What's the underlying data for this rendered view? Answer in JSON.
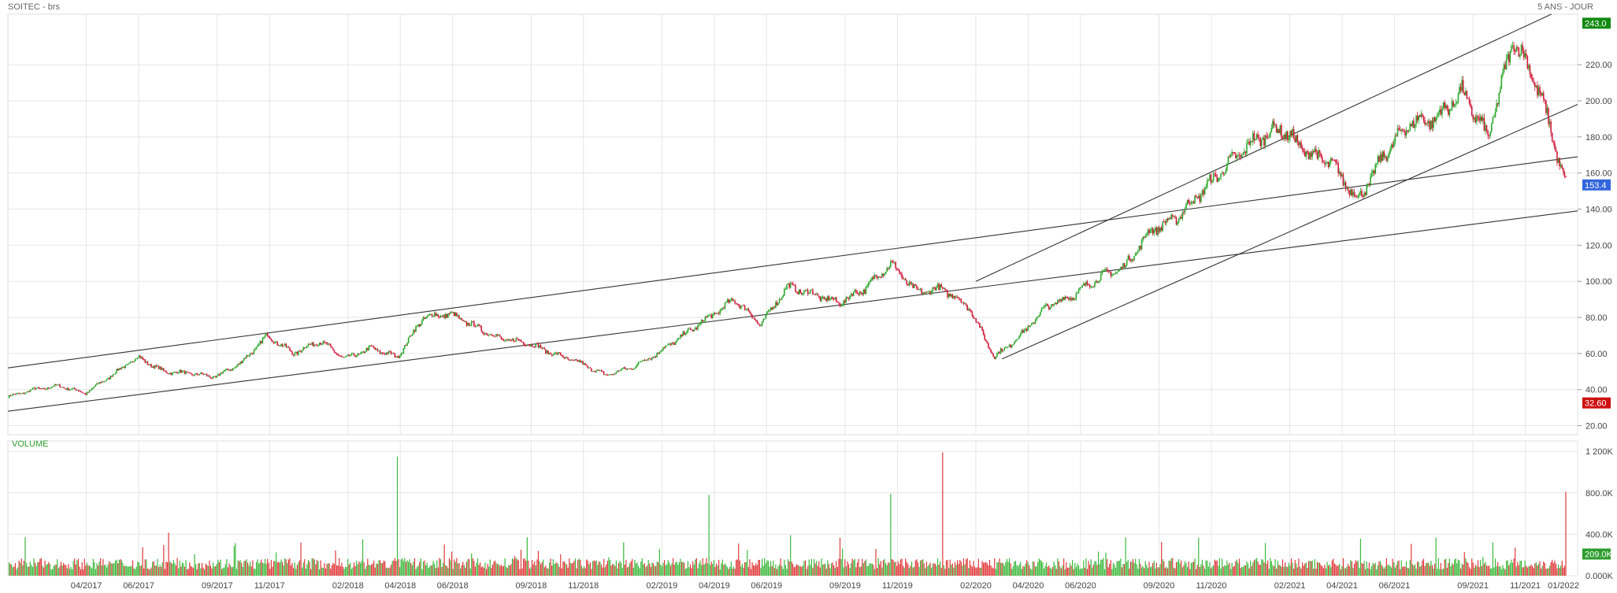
{
  "header": {
    "title": "SOITEC - brs",
    "period": "5 ANS - JOUR",
    "volume_label": "VOLUME"
  },
  "chart_data": [
    {
      "type": "candlestick",
      "title": "SOITEC - brs",
      "subtitle": "5 ANS - JOUR",
      "x_range": [
        "2017-01",
        "2022-01"
      ],
      "x_tick_labels": [
        "04/2017",
        "06/2017",
        "09/2017",
        "11/2017",
        "02/2018",
        "04/2018",
        "06/2018",
        "09/2018",
        "11/2018",
        "02/2019",
        "04/2019",
        "06/2019",
        "09/2019",
        "11/2019",
        "02/2020",
        "04/2020",
        "06/2020",
        "09/2020",
        "11/2020",
        "02/2021",
        "04/2021",
        "06/2021",
        "09/2021",
        "11/2021",
        "01/2022"
      ],
      "y_tick_labels": [
        "20.00",
        "40.00",
        "60.00",
        "80.00",
        "100.00",
        "120.00",
        "140.00",
        "160.00",
        "180.00",
        "200.00",
        "220.00"
      ],
      "ylim": [
        15,
        248
      ],
      "grid": true,
      "markers": [
        {
          "label": "243.0",
          "value": 243.0,
          "color": "#128a12"
        },
        {
          "label": "153.4",
          "value": 153.4,
          "color": "#3366dd"
        },
        {
          "label": "32.60",
          "value": 32.6,
          "color": "#cc1111"
        }
      ],
      "close_series": [
        {
          "date": "2017-01",
          "close": 36
        },
        {
          "date": "2017-02",
          "close": 40
        },
        {
          "date": "2017-03",
          "close": 42
        },
        {
          "date": "2017-04",
          "close": 38
        },
        {
          "date": "2017-05",
          "close": 48
        },
        {
          "date": "2017-06",
          "close": 58
        },
        {
          "date": "2017-07",
          "close": 50
        },
        {
          "date": "2017-08",
          "close": 49
        },
        {
          "date": "2017-09",
          "close": 47
        },
        {
          "date": "2017-10",
          "close": 55
        },
        {
          "date": "2017-11",
          "close": 70
        },
        {
          "date": "2017-12",
          "close": 60
        },
        {
          "date": "2018-01",
          "close": 67
        },
        {
          "date": "2018-02",
          "close": 57
        },
        {
          "date": "2018-03",
          "close": 63
        },
        {
          "date": "2018-04",
          "close": 58
        },
        {
          "date": "2018-05",
          "close": 80
        },
        {
          "date": "2018-06",
          "close": 82
        },
        {
          "date": "2018-07",
          "close": 75
        },
        {
          "date": "2018-08",
          "close": 68
        },
        {
          "date": "2018-09",
          "close": 66
        },
        {
          "date": "2018-10",
          "close": 60
        },
        {
          "date": "2018-11",
          "close": 55
        },
        {
          "date": "2018-12",
          "close": 48
        },
        {
          "date": "2019-01",
          "close": 52
        },
        {
          "date": "2019-02",
          "close": 60
        },
        {
          "date": "2019-03",
          "close": 70
        },
        {
          "date": "2019-04",
          "close": 80
        },
        {
          "date": "2019-05",
          "close": 90
        },
        {
          "date": "2019-06",
          "close": 76
        },
        {
          "date": "2019-07",
          "close": 97
        },
        {
          "date": "2019-08",
          "close": 93
        },
        {
          "date": "2019-09",
          "close": 88
        },
        {
          "date": "2019-10",
          "close": 96
        },
        {
          "date": "2019-11",
          "close": 110
        },
        {
          "date": "2019-12",
          "close": 94
        },
        {
          "date": "2020-01",
          "close": 96
        },
        {
          "date": "2020-02",
          "close": 86
        },
        {
          "date": "2020-03",
          "close": 58
        },
        {
          "date": "2020-04",
          "close": 70
        },
        {
          "date": "2020-05",
          "close": 86
        },
        {
          "date": "2020-06",
          "close": 92
        },
        {
          "date": "2020-07",
          "close": 102
        },
        {
          "date": "2020-08",
          "close": 108
        },
        {
          "date": "2020-09",
          "close": 128
        },
        {
          "date": "2020-10",
          "close": 135
        },
        {
          "date": "2020-11",
          "close": 150
        },
        {
          "date": "2020-12",
          "close": 165
        },
        {
          "date": "2021-01",
          "close": 178
        },
        {
          "date": "2021-02",
          "close": 185
        },
        {
          "date": "2021-03",
          "close": 172
        },
        {
          "date": "2021-04",
          "close": 165
        },
        {
          "date": "2021-05",
          "close": 145
        },
        {
          "date": "2021-06",
          "close": 170
        },
        {
          "date": "2021-07",
          "close": 188
        },
        {
          "date": "2021-08",
          "close": 190
        },
        {
          "date": "2021-09",
          "close": 205
        },
        {
          "date": "2021-10",
          "close": 180
        },
        {
          "date": "2021-11",
          "close": 235
        },
        {
          "date": "2021-12",
          "close": 205
        },
        {
          "date": "2022-01",
          "close": 153.4
        }
      ],
      "trend_lines": [
        {
          "from": {
            "date": "2017-01",
            "value": 52
          },
          "to": {
            "date": "2022-01",
            "value": 169
          }
        },
        {
          "from": {
            "date": "2017-01",
            "value": 28
          },
          "to": {
            "date": "2022-01",
            "value": 139
          }
        },
        {
          "from": {
            "date": "2020-02",
            "value": 100
          },
          "to": {
            "date": "2021-12",
            "value": 248
          }
        },
        {
          "from": {
            "date": "2020-03",
            "value": 57
          },
          "to": {
            "date": "2022-01",
            "value": 198
          }
        }
      ]
    },
    {
      "type": "bar",
      "title": "VOLUME",
      "y_tick_labels": [
        "1 200K",
        "800.0K",
        "400.0K",
        "0.000K"
      ],
      "ylim": [
        0,
        1300000
      ],
      "markers": [
        {
          "label": "209.0K",
          "value": 209000,
          "color": "#2e9d2e"
        }
      ],
      "peaks": [
        {
          "date": "2018-04",
          "volume": 1150000
        },
        {
          "date": "2020-01",
          "volume": 1190000
        },
        {
          "date": "2019-11",
          "volume": 790000
        },
        {
          "date": "2019-04",
          "volume": 780000
        },
        {
          "date": "2022-01",
          "volume": 810000
        }
      ]
    }
  ]
}
